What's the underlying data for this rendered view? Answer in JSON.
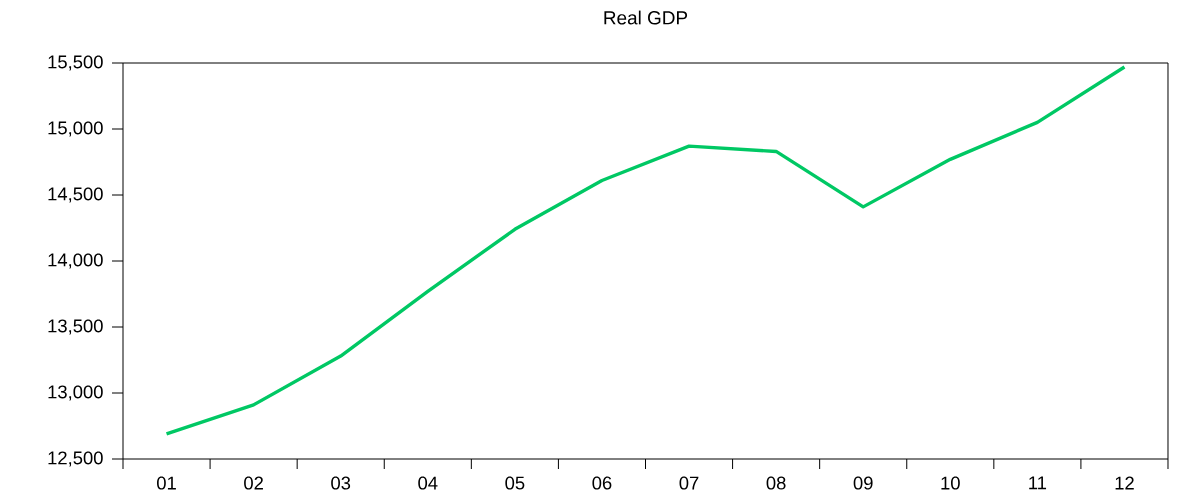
{
  "chart_data": {
    "type": "line",
    "title": "Real GDP",
    "categories": [
      "01",
      "02",
      "03",
      "04",
      "05",
      "06",
      "07",
      "08",
      "09",
      "10",
      "11",
      "12"
    ],
    "series": [
      {
        "color": "#00c864",
        "values": [
          12690,
          12910,
          13280,
          13770,
          14240,
          14610,
          14870,
          14830,
          14410,
          14770,
          15050,
          15470
        ]
      }
    ],
    "ylim": [
      12500,
      15500
    ],
    "yticks": [
      {
        "value": 12500,
        "label": "12,500"
      },
      {
        "value": 13000,
        "label": "13,000"
      },
      {
        "value": 13500,
        "label": "13,500"
      },
      {
        "value": 14000,
        "label": "14,000"
      },
      {
        "value": 14500,
        "label": "14,500"
      },
      {
        "value": 15000,
        "label": "15,000"
      },
      {
        "value": 15500,
        "label": "15,500"
      }
    ],
    "marker": "none",
    "line_style": "solid"
  }
}
